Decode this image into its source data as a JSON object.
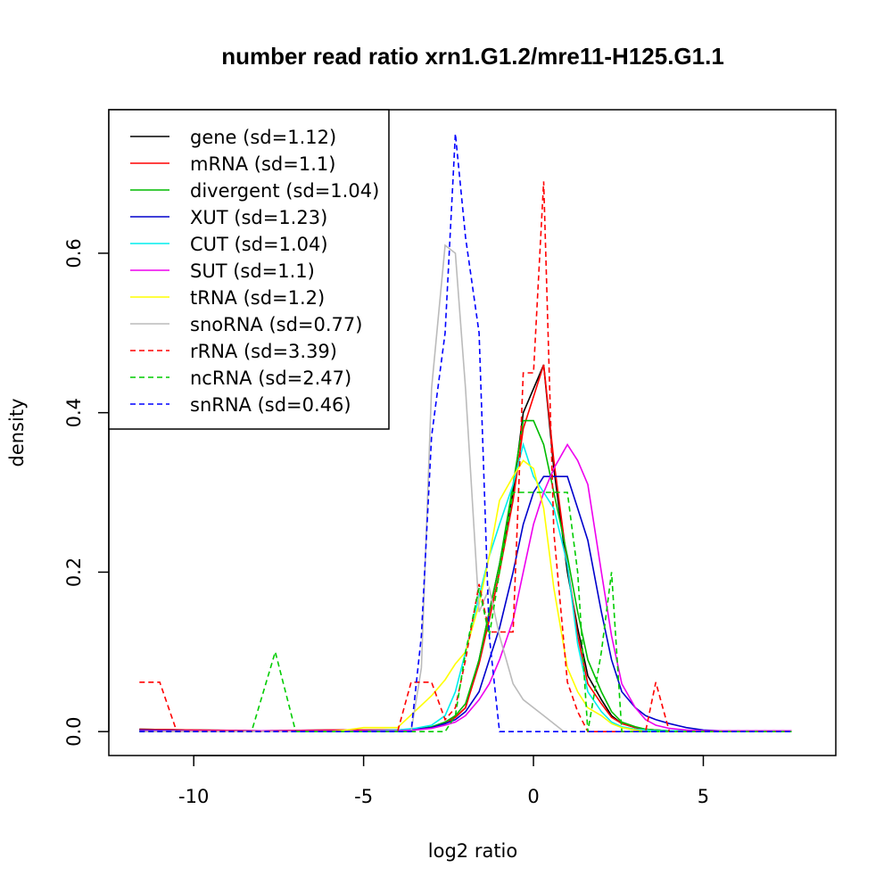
{
  "chart_data": {
    "type": "line",
    "title": "number read ratio xrn1.G1.2/mre11-H125.G1.1",
    "xlabel": "log2 ratio",
    "ylabel": "density",
    "xlim": [
      -12.5,
      8.9
    ],
    "ylim": [
      -0.03,
      0.78
    ],
    "xticks": [
      -10,
      -5,
      0,
      5
    ],
    "yticks": [
      0.0,
      0.2,
      0.4,
      0.6
    ],
    "xtick_labels": [
      "-10",
      "-5",
      "0",
      "5"
    ],
    "ytick_labels": [
      "0.0",
      "0.2",
      "0.4",
      "0.6"
    ],
    "legend_position": "top-left",
    "grid": false,
    "series": [
      {
        "name": "gene (sd=1.12)",
        "color": "#000000",
        "dash": false,
        "x": [
          -11.6,
          -10,
          -8,
          -6,
          -5,
          -4,
          -3.5,
          -3,
          -2.6,
          -2.3,
          -2,
          -1.6,
          -1.3,
          -1,
          -0.6,
          -0.3,
          0,
          0.3,
          0.6,
          1,
          1.3,
          1.6,
          2,
          2.3,
          2.6,
          3,
          3.3,
          3.6,
          4,
          4.5,
          5,
          5.5,
          6,
          7,
          7.6
        ],
        "y": [
          0.003,
          0.002,
          0.001,
          0.002,
          0.002,
          0.002,
          0.003,
          0.005,
          0.01,
          0.018,
          0.03,
          0.09,
          0.15,
          0.21,
          0.3,
          0.4,
          0.43,
          0.46,
          0.33,
          0.2,
          0.13,
          0.07,
          0.04,
          0.02,
          0.01,
          0.005,
          0.003,
          0.002,
          0.001,
          0.001,
          0.001,
          0.001,
          0.001,
          0.001,
          0.001
        ]
      },
      {
        "name": "mRNA (sd=1.1)",
        "color": "#ff0000",
        "dash": false,
        "x": [
          -11.6,
          -10,
          -8,
          -6,
          -5,
          -4,
          -3.5,
          -3,
          -2.6,
          -2.3,
          -2,
          -1.6,
          -1.3,
          -1,
          -0.6,
          -0.3,
          0,
          0.3,
          0.6,
          1,
          1.3,
          1.6,
          2,
          2.3,
          2.6,
          3,
          3.3,
          3.6,
          4,
          4.5,
          5,
          5.5,
          6,
          7,
          7.6
        ],
        "y": [
          0.003,
          0.002,
          0.001,
          0.002,
          0.002,
          0.002,
          0.003,
          0.005,
          0.01,
          0.018,
          0.03,
          0.085,
          0.14,
          0.2,
          0.29,
          0.38,
          0.42,
          0.46,
          0.34,
          0.21,
          0.12,
          0.06,
          0.035,
          0.018,
          0.01,
          0.005,
          0.003,
          0.002,
          0.001,
          0.001,
          0.001,
          0.001,
          0.001,
          0.001,
          0.001
        ]
      },
      {
        "name": "divergent (sd=1.04)",
        "color": "#00bb00",
        "dash": false,
        "x": [
          -11.6,
          -10,
          -8,
          -6,
          -5,
          -4,
          -3.5,
          -3,
          -2.6,
          -2.3,
          -2,
          -1.6,
          -1.3,
          -1,
          -0.6,
          -0.3,
          0,
          0.3,
          0.6,
          1,
          1.3,
          1.6,
          2,
          2.3,
          2.6,
          3,
          3.3,
          3.6,
          4,
          4.5,
          5,
          5.5,
          6,
          7,
          7.6
        ],
        "y": [
          0.002,
          0.001,
          0.001,
          0.001,
          0.001,
          0.002,
          0.003,
          0.006,
          0.012,
          0.02,
          0.035,
          0.09,
          0.15,
          0.21,
          0.31,
          0.39,
          0.39,
          0.36,
          0.3,
          0.22,
          0.15,
          0.09,
          0.05,
          0.025,
          0.012,
          0.006,
          0.003,
          0.002,
          0.001,
          0.001,
          0.001,
          0.001,
          0.001,
          0.001,
          0.001
        ]
      },
      {
        "name": "XUT (sd=1.23)",
        "color": "#0000cc",
        "dash": false,
        "x": [
          -11.6,
          -10,
          -8,
          -6,
          -5,
          -4,
          -3.5,
          -3,
          -2.6,
          -2.3,
          -2,
          -1.6,
          -1.3,
          -1,
          -0.6,
          -0.3,
          0,
          0.3,
          0.6,
          1,
          1.3,
          1.6,
          2,
          2.3,
          2.6,
          3,
          3.3,
          3.6,
          4,
          4.5,
          5,
          5.5,
          6,
          7,
          7.6
        ],
        "y": [
          0.002,
          0.001,
          0.001,
          0.001,
          0.001,
          0.002,
          0.003,
          0.005,
          0.01,
          0.015,
          0.025,
          0.05,
          0.09,
          0.13,
          0.2,
          0.26,
          0.3,
          0.32,
          0.32,
          0.32,
          0.28,
          0.24,
          0.15,
          0.09,
          0.05,
          0.03,
          0.02,
          0.015,
          0.01,
          0.005,
          0.002,
          0.001,
          0.001,
          0.001,
          0.001
        ]
      },
      {
        "name": "CUT (sd=1.04)",
        "color": "#00eeee",
        "dash": false,
        "x": [
          -11.6,
          -10,
          -8,
          -6,
          -5,
          -4,
          -3.5,
          -3,
          -2.6,
          -2.3,
          -2,
          -1.6,
          -1.3,
          -1,
          -0.6,
          -0.3,
          0,
          0.3,
          0.6,
          1,
          1.3,
          1.6,
          2,
          2.3,
          2.6,
          3,
          3.3,
          3.6,
          4,
          4.5,
          5,
          5.5,
          6,
          7,
          7.6
        ],
        "y": [
          0.001,
          0.001,
          0.001,
          0.001,
          0.001,
          0.002,
          0.004,
          0.008,
          0.02,
          0.05,
          0.1,
          0.17,
          0.22,
          0.26,
          0.31,
          0.36,
          0.32,
          0.3,
          0.28,
          0.21,
          0.11,
          0.05,
          0.025,
          0.012,
          0.006,
          0.003,
          0.002,
          0.001,
          0.001,
          0.001,
          0.001,
          0.001,
          0.001,
          0.001,
          0.001
        ]
      },
      {
        "name": "SUT (sd=1.1)",
        "color": "#ee00ee",
        "dash": false,
        "x": [
          -11.6,
          -10,
          -8,
          -6,
          -5,
          -4,
          -3.5,
          -3,
          -2.6,
          -2.3,
          -2,
          -1.6,
          -1.3,
          -1,
          -0.6,
          -0.3,
          0,
          0.3,
          0.6,
          1,
          1.3,
          1.6,
          2,
          2.3,
          2.6,
          3,
          3.3,
          3.6,
          4,
          4.5,
          5,
          5.5,
          6,
          7,
          7.6
        ],
        "y": [
          0.001,
          0.001,
          0.001,
          0.001,
          0.001,
          0.001,
          0.002,
          0.004,
          0.008,
          0.012,
          0.02,
          0.04,
          0.06,
          0.09,
          0.14,
          0.2,
          0.26,
          0.3,
          0.33,
          0.36,
          0.34,
          0.31,
          0.2,
          0.12,
          0.06,
          0.03,
          0.015,
          0.008,
          0.004,
          0.002,
          0.001,
          0.001,
          0.001,
          0.001,
          0.001
        ]
      },
      {
        "name": "tRNA (sd=1.2)",
        "color": "#ffff00",
        "dash": false,
        "x": [
          -11.6,
          -10,
          -8,
          -6,
          -5.5,
          -5,
          -4.5,
          -4,
          -3.5,
          -3,
          -2.6,
          -2.3,
          -2,
          -1.6,
          -1.3,
          -1,
          -0.6,
          -0.3,
          0,
          0.3,
          0.6,
          1,
          1.3,
          1.6,
          2,
          2.3,
          2.6,
          3,
          3.3,
          3.6,
          4,
          4.5,
          5,
          5.5,
          6,
          7,
          7.6
        ],
        "y": [
          0.0,
          0.0,
          0.0,
          0.0,
          0.002,
          0.005,
          0.005,
          0.005,
          0.025,
          0.045,
          0.065,
          0.085,
          0.1,
          0.16,
          0.22,
          0.29,
          0.32,
          0.34,
          0.33,
          0.28,
          0.18,
          0.08,
          0.05,
          0.03,
          0.02,
          0.01,
          0.005,
          0.002,
          0.0,
          0.0,
          0.0,
          0.0,
          0.0,
          0.0,
          0.0,
          0.0,
          0.0
        ]
      },
      {
        "name": "snoRNA (sd=0.77)",
        "color": "#bbbbbb",
        "dash": false,
        "x": [
          -11.6,
          -8,
          -5,
          -4,
          -3.6,
          -3.3,
          -3,
          -2.6,
          -2.3,
          -2,
          -1.6,
          -1.3,
          -1,
          -0.6,
          -0.3,
          0,
          0.3,
          0.6,
          0.9
        ],
        "y": [
          0.0,
          0.0,
          0.0,
          0.0,
          0.0,
          0.08,
          0.43,
          0.61,
          0.6,
          0.43,
          0.15,
          0.18,
          0.12,
          0.06,
          0.04,
          0.03,
          0.02,
          0.01,
          0.0
        ]
      },
      {
        "name": "rRNA (sd=3.39)",
        "color": "#ff0000",
        "dash": true,
        "x": [
          -11.6,
          -11,
          -10.5,
          -10,
          -8,
          -6,
          -4,
          -3.6,
          -3.3,
          -3,
          -2.6,
          -2.3,
          -2,
          -1.6,
          -1.3,
          -1,
          -0.6,
          -0.3,
          0,
          0.3,
          0.6,
          1,
          1.3,
          1.6,
          2,
          2.6,
          3,
          3.3,
          3.6,
          4,
          4.5,
          5,
          6,
          7,
          7.6
        ],
        "y": [
          0.062,
          0.062,
          0.0,
          0.0,
          0.0,
          0.0,
          0.0,
          0.062,
          0.062,
          0.062,
          0.015,
          0.03,
          0.09,
          0.185,
          0.125,
          0.125,
          0.125,
          0.45,
          0.45,
          0.69,
          0.25,
          0.062,
          0.025,
          0.0,
          0.0,
          0.0,
          0.0,
          0.0,
          0.062,
          0.0,
          0.0,
          0.0,
          0.0,
          0.0,
          0.0
        ]
      },
      {
        "name": "ncRNA (sd=2.47)",
        "color": "#00cc00",
        "dash": true,
        "x": [
          -11.6,
          -10,
          -8.3,
          -7.6,
          -7,
          -6,
          -4,
          -3.3,
          -3,
          -2.6,
          -2.3,
          -2,
          -1.6,
          -1.3,
          -1,
          -0.6,
          -0.3,
          0,
          0.3,
          0.6,
          1,
          1.3,
          1.6,
          2,
          2.3,
          2.6,
          3,
          3.3,
          3.6,
          4,
          5,
          6,
          7,
          7.6
        ],
        "y": [
          0.0,
          0.0,
          0.0,
          0.1,
          0.0,
          0.0,
          0.0,
          0.0,
          0.0,
          0.0,
          0.02,
          0.1,
          0.18,
          0.12,
          0.2,
          0.3,
          0.3,
          0.3,
          0.3,
          0.3,
          0.3,
          0.2,
          0.0,
          0.1,
          0.2,
          0.0,
          0.0,
          0.0,
          0.0,
          0.0,
          0.0,
          0.0,
          0.0,
          0.0
        ]
      },
      {
        "name": "snRNA (sd=0.46)",
        "color": "#0000ff",
        "dash": true,
        "x": [
          -11.6,
          -8,
          -5,
          -4,
          -3.6,
          -3.3,
          -3,
          -2.6,
          -2.3,
          -2,
          -1.6,
          -1.3,
          -1,
          0,
          2,
          4,
          6,
          7.6
        ],
        "y": [
          0.0,
          0.0,
          0.0,
          0.0,
          0.0,
          0.12,
          0.37,
          0.5,
          0.75,
          0.62,
          0.5,
          0.12,
          0.0,
          0.0,
          0.0,
          0.0,
          0.0,
          0.0
        ]
      }
    ]
  }
}
